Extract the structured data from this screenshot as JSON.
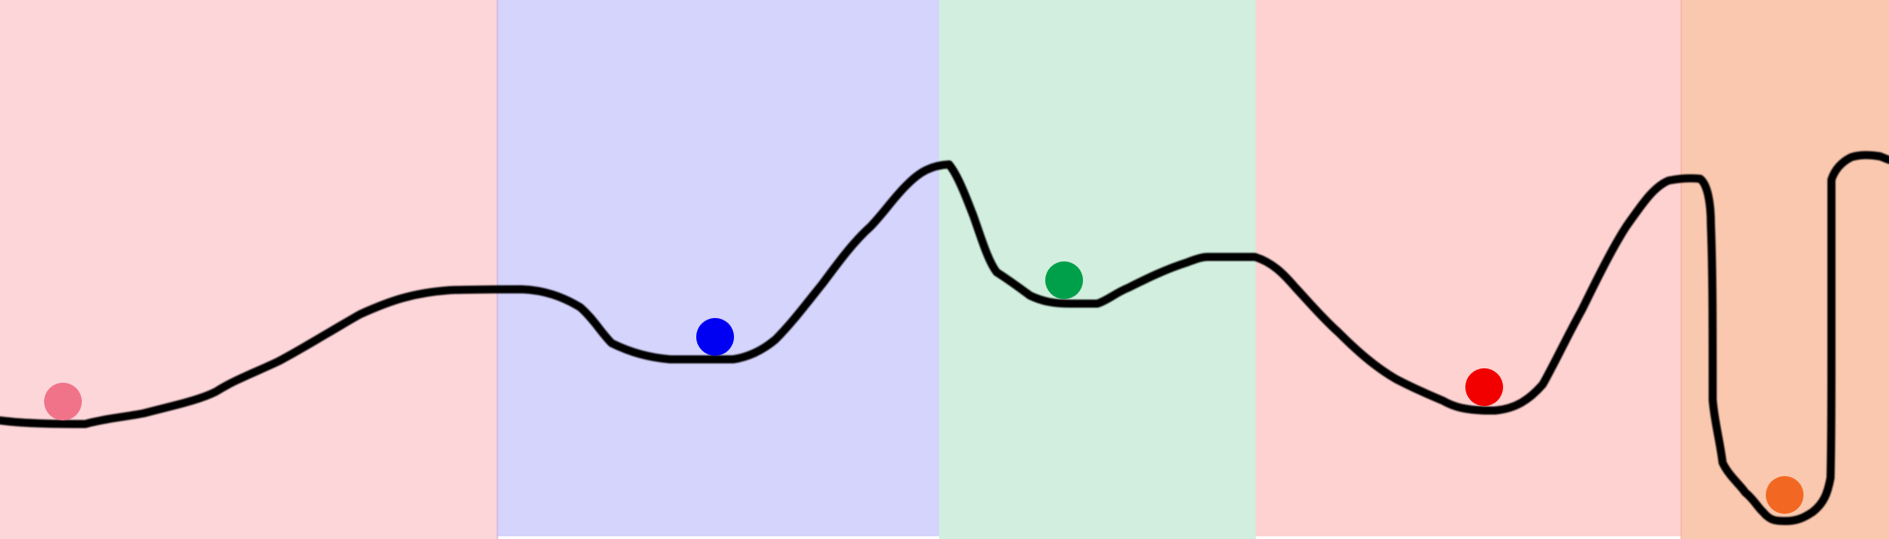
{
  "regions": [
    {
      "name": "region-1",
      "color": "#fdd6da"
    },
    {
      "name": "region-2",
      "color": "#d5d4fd"
    },
    {
      "name": "region-3",
      "color": "#d1eede"
    },
    {
      "name": "region-4",
      "color": "#fed2d1"
    },
    {
      "name": "region-5",
      "color": "#fac8ae"
    }
  ],
  "balls": [
    {
      "name": "ball-pink",
      "color": "#f07389"
    },
    {
      "name": "ball-blue",
      "color": "#0000f2"
    },
    {
      "name": "ball-green",
      "color": "#00a04a"
    },
    {
      "name": "ball-red",
      "color": "#f20000"
    },
    {
      "name": "ball-orange",
      "color": "#f26822"
    }
  ],
  "curve_color": "#000000"
}
